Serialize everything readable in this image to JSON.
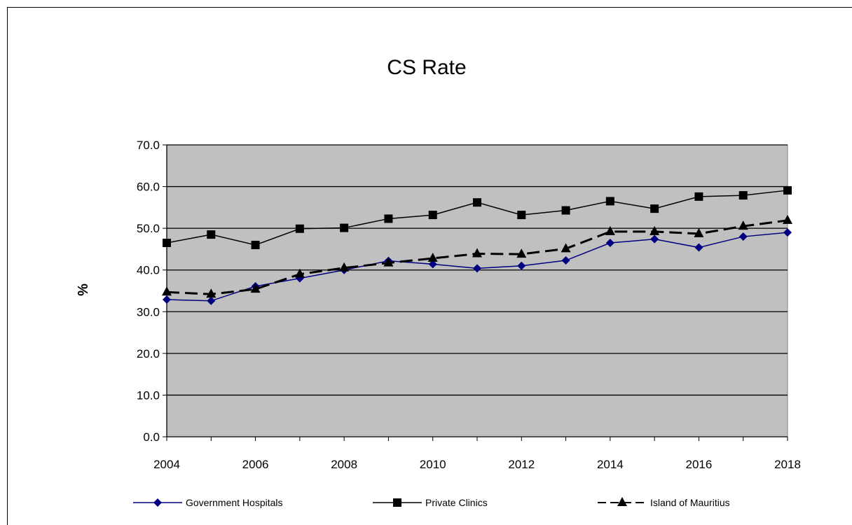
{
  "chart_data": {
    "type": "line",
    "title": "CS Rate",
    "xlabel": "",
    "ylabel": "%",
    "x": [
      2004,
      2005,
      2006,
      2007,
      2008,
      2009,
      2010,
      2011,
      2012,
      2013,
      2014,
      2015,
      2016,
      2017,
      2018
    ],
    "x_tick_labels": [
      "2004",
      "2006",
      "2008",
      "2010",
      "2012",
      "2014",
      "2016",
      "2018"
    ],
    "y_tick_labels": [
      "0.0",
      "10.0",
      "20.0",
      "30.0",
      "40.0",
      "50.0",
      "60.0",
      "70.0"
    ],
    "ylim": [
      0,
      70
    ],
    "grid": "horizontal",
    "legend_position": "bottom",
    "series": [
      {
        "name": "Government Hospitals",
        "color": "#000080",
        "marker": "diamond",
        "line_style": "solid",
        "values": [
          32.9,
          32.6,
          36.1,
          38.0,
          40.0,
          42.2,
          41.4,
          40.4,
          41.0,
          42.3,
          46.5,
          47.4,
          45.4,
          48.0,
          49.0
        ]
      },
      {
        "name": "Private Clinics",
        "color": "#000000",
        "marker": "square",
        "line_style": "solid",
        "values": [
          46.5,
          48.5,
          46.0,
          49.9,
          50.1,
          52.3,
          53.2,
          56.2,
          53.2,
          54.3,
          56.5,
          54.7,
          57.6,
          57.9,
          59.1
        ]
      },
      {
        "name": "Island of Mauritius",
        "color": "#000000",
        "marker": "triangle",
        "line_style": "dashed",
        "values": [
          34.7,
          34.2,
          35.4,
          39.0,
          40.5,
          41.7,
          42.8,
          43.9,
          43.8,
          45.1,
          49.2,
          49.2,
          48.7,
          50.5,
          51.9
        ]
      }
    ]
  },
  "colors": {
    "plot_background": "#c0c0c0",
    "gridline": "#000000"
  }
}
